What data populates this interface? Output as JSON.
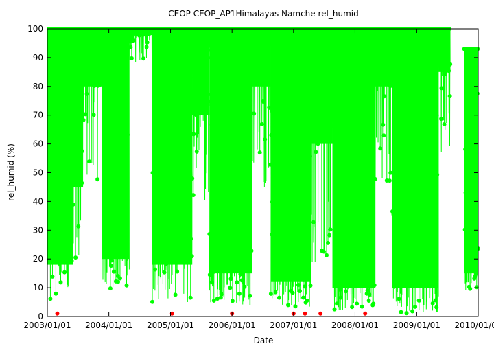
{
  "chart_data": {
    "type": "scatter",
    "title": "CEOP CEOP_AP1Himalayas Namche  rel_humid",
    "xlabel": "Date",
    "ylabel": "rel_humid (%)",
    "xlim": [
      "2003/01/01",
      "2010/01/01"
    ],
    "ylim": [
      0,
      100
    ],
    "x_ticks": [
      "2003/01/01",
      "2004/01/01",
      "2005/01/01",
      "2006/01/01",
      "2007/01/01",
      "2008/01/01",
      "2009/01/01",
      "2010/01/01"
    ],
    "y_ticks": [
      0,
      10,
      20,
      30,
      40,
      50,
      60,
      70,
      80,
      90,
      100
    ],
    "grid": false,
    "colors": {
      "main": "#00ff00",
      "flagged": "#ff0000",
      "axis": "#000000"
    },
    "series": [
      {
        "role": "main",
        "style": "line-points",
        "bands": [
          {
            "start": "2002/12/05",
            "end": "2003/06/01",
            "high": 100,
            "low": 5,
            "dense_low": 18
          },
          {
            "start": "2003/06/01",
            "end": "2003/08/01",
            "high": 100,
            "low": 17,
            "dense_low": 45
          },
          {
            "start": "2003/08/01",
            "end": "2003/11/20",
            "high": 100,
            "low": 45,
            "dense_low": 80
          },
          {
            "start": "2003/11/20",
            "end": "2004/05/01",
            "high": 100,
            "low": 8,
            "dense_low": 20
          },
          {
            "start": "2004/05/01",
            "end": "2004/06/01",
            "high": 100,
            "low": 88,
            "dense_low": 95
          },
          {
            "start": "2004/06/01",
            "end": "2004/09/15",
            "high": 100,
            "low": 88,
            "dense_low": 98
          },
          {
            "start": "2004/09/15",
            "end": "2005/05/10",
            "high": 100,
            "low": 5,
            "dense_low": 18
          },
          {
            "start": "2005/05/10",
            "end": "2005/08/20",
            "high": 100,
            "low": 40,
            "dense_low": 70
          },
          {
            "start": "2005/08/20",
            "end": "2006/05/01",
            "high": 100,
            "low": 4,
            "dense_low": 15
          },
          {
            "start": "2006/05/01",
            "end": "2006/08/20",
            "high": 100,
            "low": 45,
            "dense_low": 80
          },
          {
            "start": "2006/08/20",
            "end": "2007/04/15",
            "high": 100,
            "low": 3,
            "dense_low": 12
          },
          {
            "start": "2007/04/15",
            "end": "2007/08/20",
            "high": 100,
            "low": 17,
            "dense_low": 60
          },
          {
            "start": "2007/08/20",
            "end": "2008/05/01",
            "high": 100,
            "low": 2,
            "dense_low": 10
          },
          {
            "start": "2008/05/01",
            "end": "2008/08/10",
            "high": 100,
            "low": 45,
            "dense_low": 80
          },
          {
            "start": "2008/08/10",
            "end": "2009/05/10",
            "high": 100,
            "low": 1,
            "dense_low": 10
          },
          {
            "start": "2009/05/10",
            "end": "2009/07/20",
            "high": 100,
            "low": 55,
            "dense_low": 85
          },
          {
            "start": "2009/10/10",
            "end": "2010/01/01",
            "high": 93,
            "low": 9,
            "dense_low": 15
          }
        ]
      },
      {
        "role": "flagged",
        "style": "points",
        "points": [
          {
            "x": "2003/03/01",
            "y": 1
          },
          {
            "x": "2005/01/10",
            "y": 1
          },
          {
            "x": "2006/01/01",
            "y": 1
          },
          {
            "x": "2007/01/01",
            "y": 1
          },
          {
            "x": "2007/03/10",
            "y": 1
          },
          {
            "x": "2007/06/10",
            "y": 1
          },
          {
            "x": "2008/03/01",
            "y": 1
          }
        ]
      }
    ]
  }
}
